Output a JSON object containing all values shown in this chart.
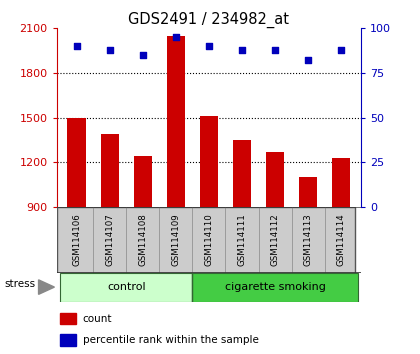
{
  "title": "GDS2491 / 234982_at",
  "samples": [
    "GSM114106",
    "GSM114107",
    "GSM114108",
    "GSM114109",
    "GSM114110",
    "GSM114111",
    "GSM114112",
    "GSM114113",
    "GSM114114"
  ],
  "counts": [
    1500,
    1390,
    1240,
    2050,
    1510,
    1350,
    1270,
    1100,
    1230
  ],
  "percentiles": [
    90,
    88,
    85,
    95,
    90,
    88,
    88,
    82,
    88
  ],
  "ylim_left": [
    900,
    2100
  ],
  "ylim_right": [
    0,
    100
  ],
  "yticks_left": [
    900,
    1200,
    1500,
    1800,
    2100
  ],
  "yticks_right": [
    0,
    25,
    50,
    75,
    100
  ],
  "bar_color": "#cc0000",
  "dot_color": "#0000bb",
  "grid_color": "#000000",
  "control_samples": 4,
  "control_label": "control",
  "treatment_label": "cigarette smoking",
  "stress_label": "stress",
  "control_bg": "#ccffcc",
  "treatment_bg": "#44cc44",
  "label_bg": "#cccccc",
  "legend_count_label": "count",
  "legend_pct_label": "percentile rank within the sample",
  "bar_width": 0.55,
  "title_fontsize": 10.5,
  "tick_fontsize": 8,
  "baseline": 900
}
